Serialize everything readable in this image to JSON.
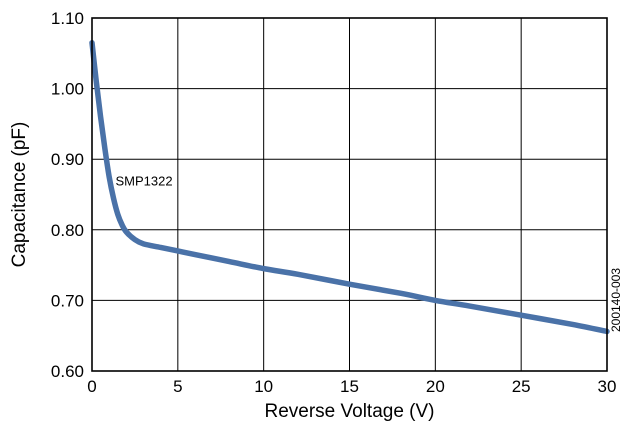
{
  "chart_data": {
    "type": "line",
    "xlabel": "Reverse Voltage (V)",
    "ylabel": "Capacitance (pF)",
    "xlim": [
      0,
      30
    ],
    "ylim": [
      0.6,
      1.1
    ],
    "x_ticks": [
      "0",
      "5",
      "10",
      "15",
      "20",
      "25",
      "30"
    ],
    "y_ticks": [
      "0.60",
      "0.70",
      "0.80",
      "0.90",
      "1.00",
      "1.10"
    ],
    "grid": true,
    "series": [
      {
        "name": "SMP1322",
        "color": "#4a72a8",
        "x": [
          0,
          0.25,
          0.5,
          0.75,
          1.0,
          1.25,
          1.5,
          1.75,
          2.0,
          2.5,
          3,
          4,
          5,
          6,
          8,
          10,
          12,
          15,
          18,
          20,
          22,
          25,
          28,
          30
        ],
        "y": [
          1.065,
          1.01,
          0.96,
          0.915,
          0.875,
          0.845,
          0.822,
          0.807,
          0.797,
          0.786,
          0.78,
          0.775,
          0.77,
          0.765,
          0.755,
          0.745,
          0.737,
          0.723,
          0.71,
          0.7,
          0.692,
          0.679,
          0.666,
          0.656
        ]
      }
    ],
    "annotations": [
      {
        "text": "SMP1322",
        "x": 1.25,
        "y": 0.87
      }
    ],
    "side_label": "200140-003"
  }
}
